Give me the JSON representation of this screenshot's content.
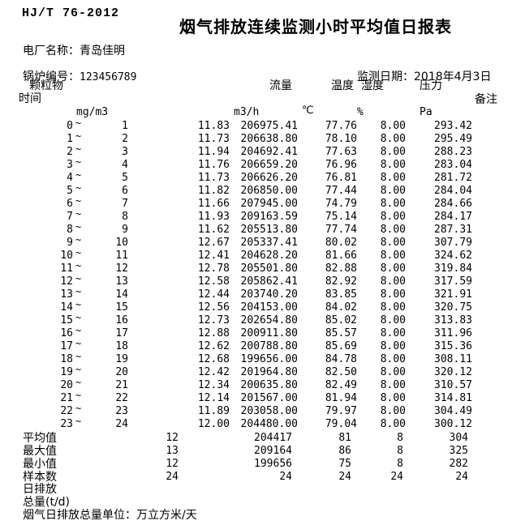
{
  "document": {
    "standard_code": "HJ/T 76-2012",
    "title": "烟气排放连续监测小时平均值日报表",
    "plant_label": "电厂名称：",
    "plant_name": "青岛佳明",
    "boiler_label": "锅炉编号：",
    "boiler_number": "123456789",
    "date_label": "监测日期：",
    "date_value": "2018年4月3日"
  },
  "table": {
    "headers": {
      "time": "时间",
      "particulate": "颗粒物",
      "flow": "流量",
      "temperature": "温度",
      "humidity": "湿度",
      "pressure": "压力",
      "remark": "备注"
    },
    "units": {
      "particulate": "mg/m3",
      "flow": "m3/h",
      "temperature": "℃",
      "humidity": "%",
      "pressure": "Pa"
    },
    "rows": [
      {
        "from": "0",
        "to": "1",
        "pm": "11.83",
        "flow": "206975.41",
        "temp": "77.76",
        "hum": "8.00",
        "pres": "293.42"
      },
      {
        "from": "1",
        "to": "2",
        "pm": "11.73",
        "flow": "206638.80",
        "temp": "78.10",
        "hum": "8.00",
        "pres": "295.49"
      },
      {
        "from": "2",
        "to": "3",
        "pm": "11.94",
        "flow": "204692.41",
        "temp": "77.63",
        "hum": "8.00",
        "pres": "288.23"
      },
      {
        "from": "3",
        "to": "4",
        "pm": "11.76",
        "flow": "206659.20",
        "temp": "76.96",
        "hum": "8.00",
        "pres": "283.04"
      },
      {
        "from": "4",
        "to": "5",
        "pm": "11.73",
        "flow": "206626.20",
        "temp": "76.81",
        "hum": "8.00",
        "pres": "281.72"
      },
      {
        "from": "5",
        "to": "6",
        "pm": "11.82",
        "flow": "206850.00",
        "temp": "77.44",
        "hum": "8.00",
        "pres": "284.04"
      },
      {
        "from": "6",
        "to": "7",
        "pm": "11.66",
        "flow": "207945.00",
        "temp": "74.79",
        "hum": "8.00",
        "pres": "284.66"
      },
      {
        "from": "7",
        "to": "8",
        "pm": "11.93",
        "flow": "209163.59",
        "temp": "75.14",
        "hum": "8.00",
        "pres": "284.17"
      },
      {
        "from": "8",
        "to": "9",
        "pm": "11.62",
        "flow": "205513.80",
        "temp": "77.74",
        "hum": "8.00",
        "pres": "287.31"
      },
      {
        "from": "9",
        "to": "10",
        "pm": "12.67",
        "flow": "205337.41",
        "temp": "80.02",
        "hum": "8.00",
        "pres": "307.79"
      },
      {
        "from": "10",
        "to": "11",
        "pm": "12.41",
        "flow": "204628.20",
        "temp": "81.66",
        "hum": "8.00",
        "pres": "324.62"
      },
      {
        "from": "11",
        "to": "12",
        "pm": "12.78",
        "flow": "205501.80",
        "temp": "82.88",
        "hum": "8.00",
        "pres": "319.84"
      },
      {
        "from": "12",
        "to": "13",
        "pm": "12.58",
        "flow": "205862.41",
        "temp": "82.92",
        "hum": "8.00",
        "pres": "317.59"
      },
      {
        "from": "13",
        "to": "14",
        "pm": "12.44",
        "flow": "203740.20",
        "temp": "83.85",
        "hum": "8.00",
        "pres": "321.91"
      },
      {
        "from": "14",
        "to": "15",
        "pm": "12.56",
        "flow": "204153.00",
        "temp": "84.02",
        "hum": "8.00",
        "pres": "320.75"
      },
      {
        "from": "15",
        "to": "16",
        "pm": "12.73",
        "flow": "202654.80",
        "temp": "85.02",
        "hum": "8.00",
        "pres": "313.83"
      },
      {
        "from": "16",
        "to": "17",
        "pm": "12.88",
        "flow": "200911.80",
        "temp": "85.57",
        "hum": "8.00",
        "pres": "311.96"
      },
      {
        "from": "17",
        "to": "18",
        "pm": "12.62",
        "flow": "200788.80",
        "temp": "85.69",
        "hum": "8.00",
        "pres": "315.36"
      },
      {
        "from": "18",
        "to": "19",
        "pm": "12.68",
        "flow": "199656.00",
        "temp": "84.78",
        "hum": "8.00",
        "pres": "308.11"
      },
      {
        "from": "19",
        "to": "20",
        "pm": "12.42",
        "flow": "201964.80",
        "temp": "82.50",
        "hum": "8.00",
        "pres": "320.12"
      },
      {
        "from": "20",
        "to": "21",
        "pm": "12.34",
        "flow": "200635.80",
        "temp": "82.49",
        "hum": "8.00",
        "pres": "310.57"
      },
      {
        "from": "21",
        "to": "22",
        "pm": "12.14",
        "flow": "201567.00",
        "temp": "81.94",
        "hum": "8.00",
        "pres": "314.81"
      },
      {
        "from": "22",
        "to": "23",
        "pm": "11.89",
        "flow": "203058.00",
        "temp": "79.97",
        "hum": "8.00",
        "pres": "304.49"
      },
      {
        "from": "23",
        "to": "24",
        "pm": "12.00",
        "flow": "204480.00",
        "temp": "79.04",
        "hum": "8.00",
        "pres": "300.12"
      }
    ],
    "summary": [
      {
        "label": "平均值",
        "pm": "12",
        "flow": "204417",
        "temp": "81",
        "hum": "8",
        "pres": "304"
      },
      {
        "label": "最大值",
        "pm": "13",
        "flow": "209164",
        "temp": "86",
        "hum": "8",
        "pres": "325"
      },
      {
        "label": "最小值",
        "pm": "12",
        "flow": "199656",
        "temp": "75",
        "hum": "8",
        "pres": "282"
      },
      {
        "label": "样本数",
        "pm": "24",
        "flow": "24",
        "temp": "24",
        "hum": "24",
        "pres": "24"
      }
    ],
    "footer_lines": [
      "日排放",
      "总量(t/d)",
      "烟气日排放总量单位：万立方米/天"
    ]
  }
}
